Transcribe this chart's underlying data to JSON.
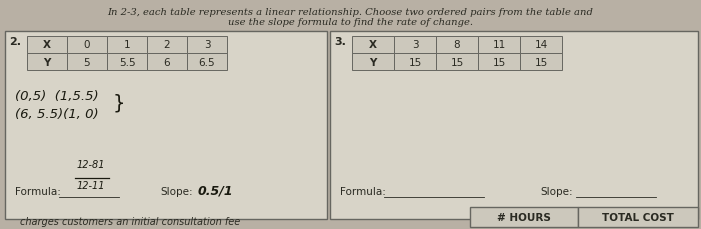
{
  "bg_color": "#b8b0a4",
  "header_line1": "In 2-3, each table represents a linear relationship. Choose two ordered pairs from the table and",
  "header_line2": "use the slope formula to find the rate of change.",
  "header_fontsize": 7.2,
  "problem2_label": "2.",
  "problem3_label": "3.",
  "table2_x_header": "X",
  "table2_y_header": "Y",
  "table2_x": [
    "0",
    "1",
    "2",
    "3"
  ],
  "table2_y": [
    "5",
    "5.5",
    "6",
    "6.5"
  ],
  "table3_x_header": "X",
  "table3_y_header": "Y",
  "table3_x": [
    "3",
    "8",
    "11",
    "14"
  ],
  "table3_y": [
    "15",
    "15",
    "15",
    "15"
  ],
  "hw_line1": "(0,5)  (1,5.5)",
  "hw_line2": "(6, 5.5)(1, 0)",
  "hw_curly": ")",
  "formula2_label": "Formula:",
  "formula2_numerator": "12-81",
  "formula2_denominator": "12-11",
  "slope2_label": "Slope:",
  "slope2_value": "0.5/1",
  "formula3_label": "Formula:",
  "slope3_label": "Slope:",
  "bottom_text": "charges customers an initial consultation fee",
  "hours_label": "# HOURS",
  "total_cost_label": "TOTAL COST",
  "border_color": "#888880",
  "dark_border": "#666660",
  "text_color": "#2a2a22",
  "hw_color": "#1a1a10",
  "cell_bg": "#ccc8bc",
  "paper_bg": "#d8d4c8",
  "box_bg": "#c8c4b8"
}
